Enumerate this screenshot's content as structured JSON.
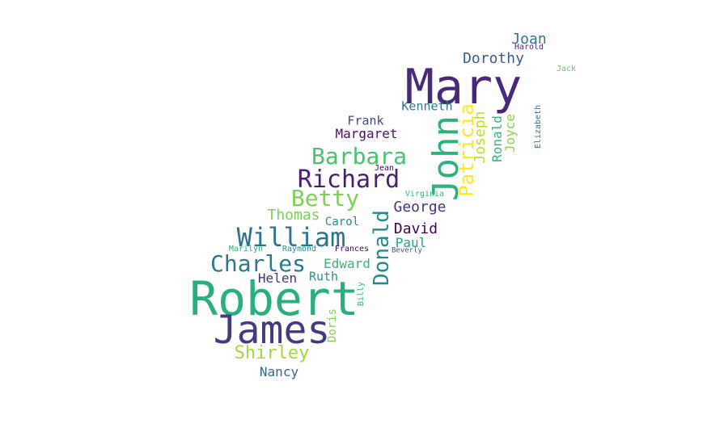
{
  "words": [
    {
      "text": "Mary",
      "color": "#482878",
      "size": 60,
      "weight": 1.0
    },
    {
      "text": "Robert",
      "color": "#29af7f",
      "size": 58,
      "weight": 0.97
    },
    {
      "text": "James",
      "color": "#443983",
      "size": 48,
      "weight": 0.8
    },
    {
      "text": "John",
      "color": "#2db27d",
      "size": 44,
      "weight": 0.73
    },
    {
      "text": "William",
      "color": "#2c728e",
      "size": 32,
      "weight": 0.53
    },
    {
      "text": "Richard",
      "color": "#481f70",
      "size": 30,
      "weight": 0.5
    },
    {
      "text": "Barbara",
      "color": "#4ac16d",
      "size": 28,
      "weight": 0.47
    },
    {
      "text": "Betty",
      "color": "#7ad151",
      "size": 28,
      "weight": 0.47
    },
    {
      "text": "Charles",
      "color": "#2a788e",
      "size": 28,
      "weight": 0.47
    },
    {
      "text": "Donald",
      "color": "#23898e",
      "size": 26,
      "weight": 0.43
    },
    {
      "text": "Patricia",
      "color": "#fde725",
      "size": 24,
      "weight": 0.4
    },
    {
      "text": "Shirley",
      "color": "#a0da39",
      "size": 22,
      "weight": 0.37
    },
    {
      "text": "Dorothy",
      "color": "#365c8d",
      "size": 18,
      "weight": 0.3
    },
    {
      "text": "Joan",
      "color": "#2a788e",
      "size": 18,
      "weight": 0.3
    },
    {
      "text": "Thomas",
      "color": "#7ad151",
      "size": 18,
      "weight": 0.3
    },
    {
      "text": "George",
      "color": "#46327e",
      "size": 18,
      "weight": 0.3
    },
    {
      "text": "David",
      "color": "#440154",
      "size": 18,
      "weight": 0.3
    },
    {
      "text": "Joseph",
      "color": "#bddf26",
      "size": 18,
      "weight": 0.3
    },
    {
      "text": "Edward",
      "color": "#35b779",
      "size": 16,
      "weight": 0.27
    },
    {
      "text": "Paul",
      "color": "#22a884",
      "size": 16,
      "weight": 0.27
    },
    {
      "text": "Helen",
      "color": "#46327e",
      "size": 16,
      "weight": 0.27
    },
    {
      "text": "Nancy",
      "color": "#31688e",
      "size": 16,
      "weight": 0.27
    },
    {
      "text": "Margaret",
      "color": "#471164",
      "size": 16,
      "weight": 0.27
    },
    {
      "text": "Ronald",
      "color": "#35b779",
      "size": 16,
      "weight": 0.27
    },
    {
      "text": "Joyce",
      "color": "#84d44b",
      "size": 16,
      "weight": 0.27
    },
    {
      "text": "Ruth",
      "color": "#1f988b",
      "size": 15,
      "weight": 0.25
    },
    {
      "text": "Kenneth",
      "color": "#2a788e",
      "size": 15,
      "weight": 0.25
    },
    {
      "text": "Frank",
      "color": "#414487",
      "size": 15,
      "weight": 0.25
    },
    {
      "text": "Carol",
      "color": "#21918c",
      "size": 14,
      "weight": 0.23
    },
    {
      "text": "Doris",
      "color": "#84d44b",
      "size": 14,
      "weight": 0.23
    },
    {
      "text": "Jean",
      "color": "#440154",
      "size": 10,
      "weight": 0.17
    },
    {
      "text": "Virginia",
      "color": "#35b779",
      "size": 10,
      "weight": 0.17
    },
    {
      "text": "Elizabeth",
      "color": "#2c728e",
      "size": 10,
      "weight": 0.17
    },
    {
      "text": "Harold",
      "color": "#482878",
      "size": 10,
      "weight": 0.17
    },
    {
      "text": "Jack",
      "color": "#5ec962",
      "size": 10,
      "weight": 0.17
    },
    {
      "text": "Marilyn",
      "color": "#29af7f",
      "size": 10,
      "weight": 0.17
    },
    {
      "text": "Raymond",
      "color": "#21918c",
      "size": 10,
      "weight": 0.17
    },
    {
      "text": "Frances",
      "color": "#440154",
      "size": 10,
      "weight": 0.17
    },
    {
      "text": "Beverly",
      "color": "#3b528b",
      "size": 9,
      "weight": 0.15
    },
    {
      "text": "Billy",
      "color": "#35b779",
      "size": 10,
      "weight": 0.17
    }
  ]
}
